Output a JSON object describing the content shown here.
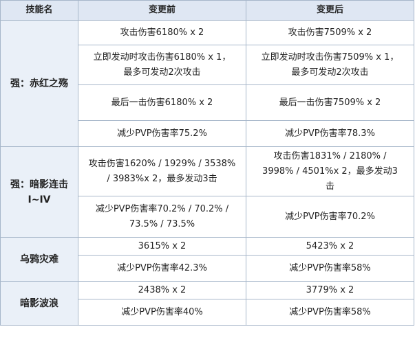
{
  "headers": [
    "技能名",
    "变更前",
    "变更后"
  ],
  "skills": [
    {
      "name": "强：赤红之殇",
      "rows": [
        {
          "before": "攻击伤害6180% x 2",
          "after": "攻击伤害7509% x 2"
        },
        {
          "before": "立即发动时攻击伤害6180% x 1，\n最多可发动2次攻击",
          "after": "立即发动时攻击伤害7509% x 1，\n最多可发动2次攻击"
        },
        {
          "before": "最后一击伤害6180% x 2",
          "after": "最后一击伤害7509% x 2"
        },
        {
          "before": "减少PVP伤害率75.2%",
          "after": "减少PVP伤害率78.3%"
        }
      ]
    },
    {
      "name": "强：暗影连击\nI~IV",
      "rows": [
        {
          "before": "攻击伤害1620% / 1929% / 3538%\n/ 3983%x 2，最多发动3击",
          "after": "攻击伤害1831% / 2180% /\n3998% / 4501%x 2，最多发动3\n击"
        },
        {
          "before": "减少PVP伤害率70.2% / 70.2% /\n73.5% / 73.5%",
          "after": "减少PVP伤害率70.2%"
        }
      ]
    },
    {
      "name": "乌鸦灾难",
      "rows": [
        {
          "before": "3615% x 2",
          "after": "5423% x 2"
        },
        {
          "before": "减少PVP伤害率42.3%",
          "after": "减少PVP伤害率58%"
        }
      ]
    },
    {
      "name": "暗影波浪",
      "rows": [
        {
          "before": "2438% x 2",
          "after": "3779% x 2"
        },
        {
          "before": "减少PVP伤害率40%",
          "after": "减少PVP伤害率58%"
        }
      ]
    }
  ]
}
